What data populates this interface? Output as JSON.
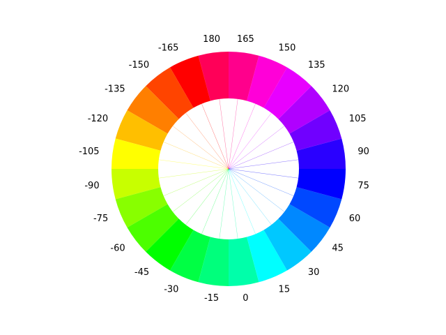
{
  "chart_data": {
    "type": "pie",
    "title": "",
    "labels": [
      "0",
      "15",
      "30",
      "45",
      "60",
      "75",
      "90",
      "105",
      "120",
      "135",
      "150",
      "165",
      "180",
      "-165",
      "-150",
      "-135",
      "-120",
      "-105",
      "-90",
      "-75",
      "-60",
      "-45",
      "-30",
      "-15"
    ],
    "values": [
      1,
      1,
      1,
      1,
      1,
      1,
      1,
      1,
      1,
      1,
      1,
      1,
      1,
      1,
      1,
      1,
      1,
      1,
      1,
      1,
      1,
      1,
      1,
      1
    ],
    "colors": [
      "#00ffaa",
      "#00ffff",
      "#00c8ff",
      "#0088ff",
      "#0048ff",
      "#0000ff",
      "#2a00ff",
      "#7000ff",
      "#b000ff",
      "#e800ff",
      "#ff00d8",
      "#ff008c",
      "#ff0058",
      "#ff0000",
      "#ff4400",
      "#ff7f00",
      "#ffbf00",
      "#ffff00",
      "#c8ff00",
      "#88ff00",
      "#4cff00",
      "#00ff00",
      "#00ff44",
      "#00ff7c"
    ],
    "start_direction": "bottom",
    "direction": "counter-clockwise",
    "donut": true,
    "legend": "none",
    "grid": false
  }
}
